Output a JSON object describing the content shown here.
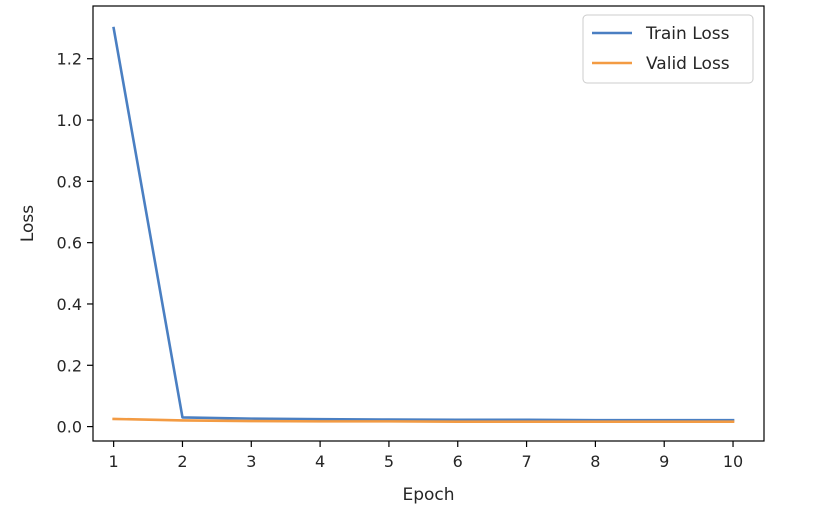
{
  "chart_data": {
    "type": "line",
    "title": "",
    "xlabel": "Epoch",
    "ylabel": "Loss",
    "x": [
      1,
      2,
      3,
      4,
      5,
      6,
      7,
      8,
      9,
      10
    ],
    "xticks": [
      "1",
      "2",
      "3",
      "4",
      "5",
      "6",
      "7",
      "8",
      "9",
      "10"
    ],
    "yticks": [
      "0.0",
      "0.2",
      "0.4",
      "0.6",
      "0.8",
      "1.0",
      "1.2"
    ],
    "xlim": [
      0.7,
      10.45
    ],
    "ylim": [
      -0.047,
      1.372
    ],
    "grid": false,
    "legend_position": "top-right",
    "series": [
      {
        "name": "Train Loss",
        "color": "#4a7fc2",
        "values": [
          1.3,
          0.03,
          0.026,
          0.024,
          0.023,
          0.022,
          0.022,
          0.021,
          0.021,
          0.021
        ]
      },
      {
        "name": "Valid Loss",
        "color": "#f39b43",
        "values": [
          0.025,
          0.02,
          0.018,
          0.017,
          0.017,
          0.016,
          0.016,
          0.016,
          0.016,
          0.016
        ]
      }
    ]
  }
}
